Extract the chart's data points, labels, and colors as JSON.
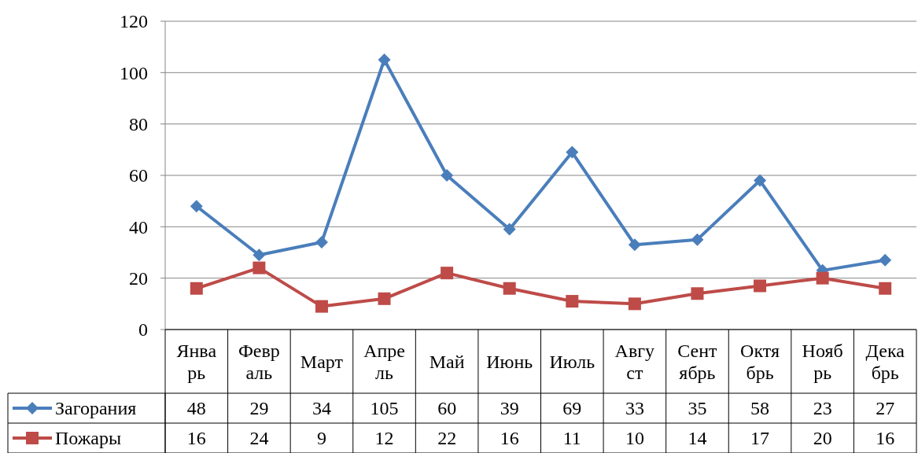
{
  "chart_data": {
    "type": "line",
    "categories": [
      "Январь",
      "Февраль",
      "Март",
      "Апрель",
      "Май",
      "Июнь",
      "Июль",
      "Август",
      "Сентябрь",
      "Октябрь",
      "Ноябрь",
      "Декабрь"
    ],
    "series": [
      {
        "name": "Загорания",
        "color": "#4a7ebb",
        "marker": "diamond",
        "values": [
          48,
          29,
          34,
          105,
          60,
          39,
          69,
          33,
          35,
          58,
          23,
          27
        ]
      },
      {
        "name": "Пожары",
        "color": "#be4b48",
        "marker": "square",
        "values": [
          16,
          24,
          9,
          12,
          22,
          16,
          11,
          10,
          14,
          17,
          20,
          16
        ]
      }
    ],
    "ylim": [
      0,
      120
    ],
    "yticks": [
      0,
      20,
      40,
      60,
      80,
      100,
      120
    ],
    "grid": "y",
    "legend": "bottom",
    "data_labels": true,
    "line_style": "solid"
  }
}
